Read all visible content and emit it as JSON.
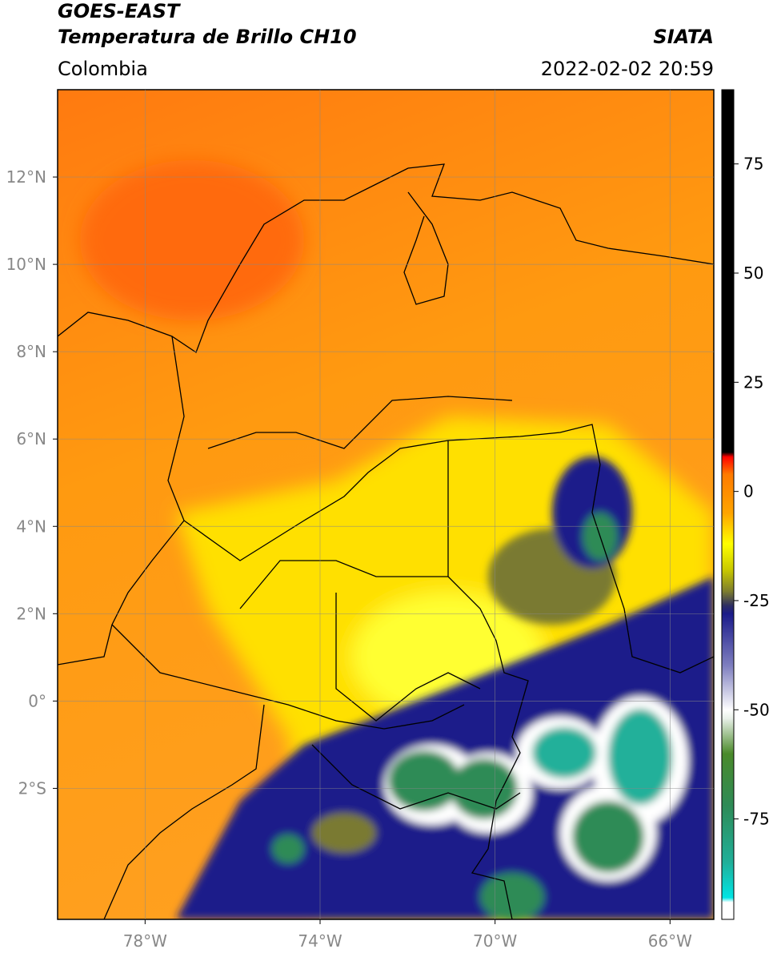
{
  "header": {
    "satellite": "GOES-EAST",
    "product": "Temperatura de Brillo CH10",
    "agency": "SIATA",
    "region": "Colombia",
    "datetime": "2022-02-02 20:59"
  },
  "map": {
    "lonlim": [
      -80,
      -65
    ],
    "latlim": [
      -5,
      14
    ],
    "grid": true,
    "xticks": [
      {
        "value": -78,
        "label": "78°W"
      },
      {
        "value": -74,
        "label": "74°W"
      },
      {
        "value": -70,
        "label": "70°W"
      },
      {
        "value": -66,
        "label": "66°W"
      }
    ],
    "yticks": [
      {
        "value": 12,
        "label": "12°N"
      },
      {
        "value": 10,
        "label": "10°N"
      },
      {
        "value": 8,
        "label": "8°N"
      },
      {
        "value": 6,
        "label": "6°N"
      },
      {
        "value": 4,
        "label": "4°N"
      },
      {
        "value": 2,
        "label": "2°N"
      },
      {
        "value": 0,
        "label": "0°"
      },
      {
        "value": -2,
        "label": "2°S"
      }
    ]
  },
  "colorbar": {
    "lim": [
      -98,
      92
    ],
    "ticks": [
      75,
      50,
      25,
      0,
      -25,
      -50,
      -75
    ],
    "stops": [
      {
        "value": -98,
        "color": "#ffffff"
      },
      {
        "value": -94,
        "color": "#ffffff"
      },
      {
        "value": -93,
        "color": "#00e5e5"
      },
      {
        "value": -85,
        "color": "#20b09a"
      },
      {
        "value": -72,
        "color": "#2e8b57"
      },
      {
        "value": -60,
        "color": "#4a8a2a"
      },
      {
        "value": -52,
        "color": "#e8f0e8"
      },
      {
        "value": -50,
        "color": "#ffffff"
      },
      {
        "value": -40,
        "color": "#8080c0"
      },
      {
        "value": -28,
        "color": "#1a1a8a"
      },
      {
        "value": -26,
        "color": "#303060"
      },
      {
        "value": -23,
        "color": "#7a7a30"
      },
      {
        "value": -18,
        "color": "#c8c800"
      },
      {
        "value": -12,
        "color": "#ffff00"
      },
      {
        "value": -5,
        "color": "#ffa500"
      },
      {
        "value": 4,
        "color": "#ff7a00"
      },
      {
        "value": 8,
        "color": "#ff0000"
      },
      {
        "value": 9,
        "color": "#000000"
      },
      {
        "value": 92,
        "color": "#000000"
      }
    ]
  }
}
